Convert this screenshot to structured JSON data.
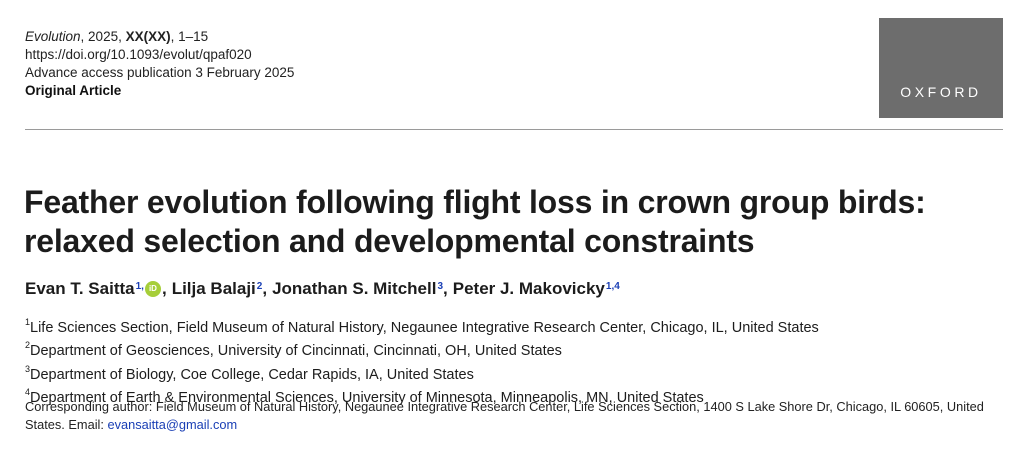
{
  "meta": {
    "journal": "Evolution",
    "year_text": ", 2025, ",
    "volume": "XX(XX)",
    "pages": ", 1–15",
    "doi": "https://doi.org/10.1093/evolut/qpaf020",
    "publication": "Advance access publication 3 February 2025",
    "article_type": "Original Article"
  },
  "publisher": {
    "logo_text": "OXFORD"
  },
  "title": "Feather evolution following flight loss in crown group birds: relaxed selection and developmental constraints",
  "authors": [
    {
      "name": "Evan T. Saitta",
      "sup": "1,",
      "orcid": "iD"
    },
    {
      "name": "Lilja Balaji",
      "sup": "2"
    },
    {
      "name": "Jonathan S. Mitchell",
      "sup": "3"
    },
    {
      "name": "Peter J. Makovicky",
      "sup": "1,4"
    }
  ],
  "affiliations": [
    {
      "num": "1",
      "text": "Life Sciences Section, Field Museum of Natural History, Negaunee Integrative Research Center, Chicago, IL, United States"
    },
    {
      "num": "2",
      "text": "Department of Geosciences, University of Cincinnati, Cincinnati, OH, United States"
    },
    {
      "num": "3",
      "text": "Department of Biology, Coe College, Cedar Rapids, IA, United States"
    },
    {
      "num": "4",
      "text": "Department of Earth & Environmental Sciences, University of Minnesota, Minneapolis, MN, United States"
    }
  ],
  "corresponding": {
    "text": "Corresponding author: Field Museum of Natural History, Negaunee Integrative Research Center, Life Sciences Section, 1400 S Lake Shore Dr, Chicago, IL 60605, United States. Email: ",
    "email": "evansaitta@gmail.com"
  }
}
